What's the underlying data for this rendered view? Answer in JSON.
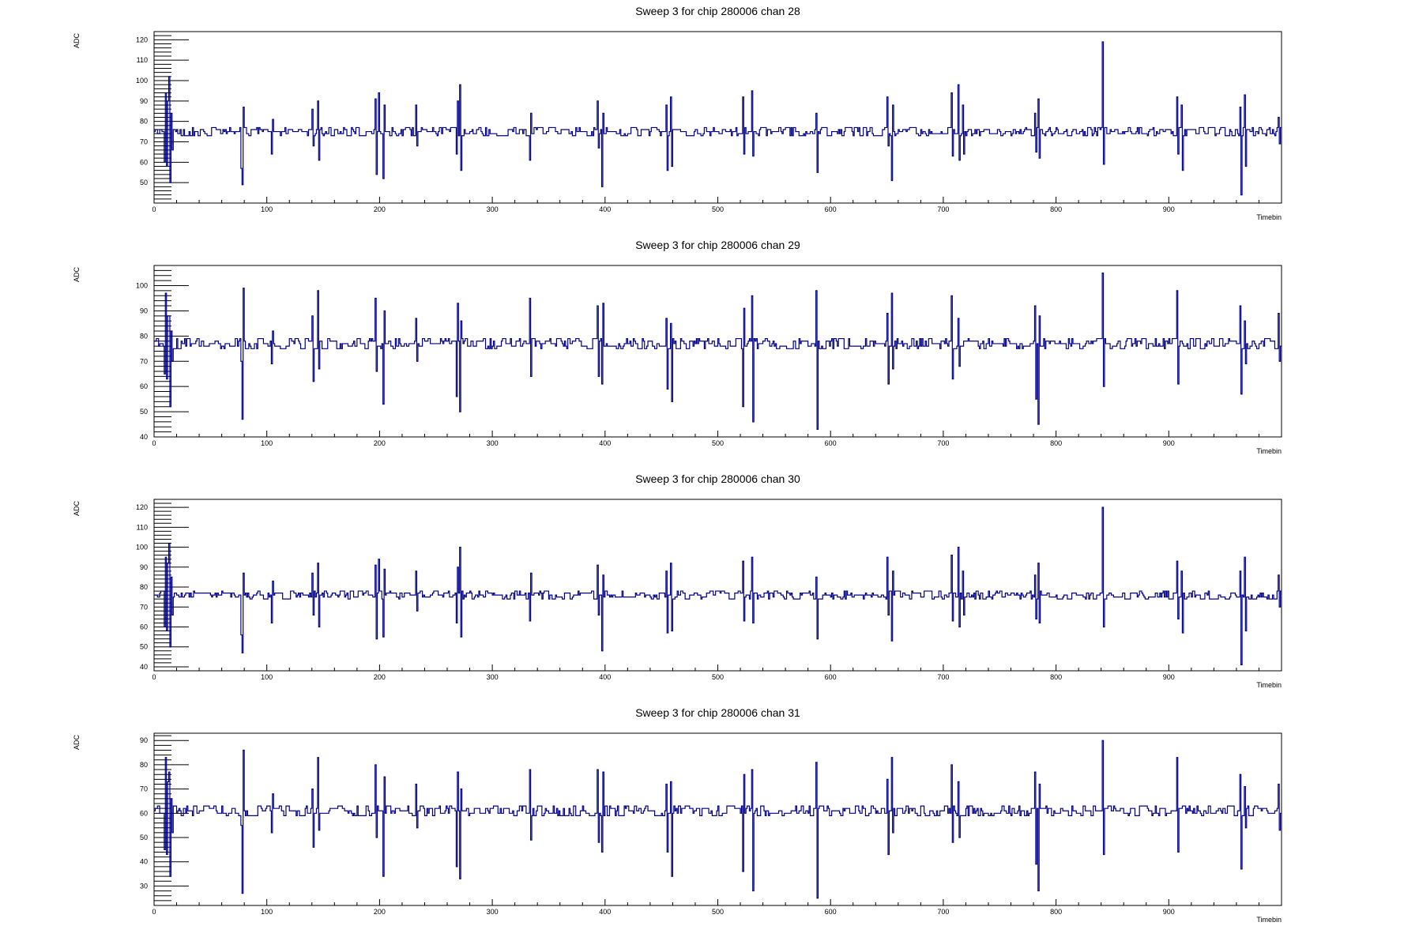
{
  "colors": {
    "trace": "#00008b",
    "frame": "#000000",
    "background": "#ffffff"
  },
  "chart_data": [
    {
      "type": "line",
      "style": "step",
      "title": "Sweep 3 for chip 280006 chan 28",
      "xlabel": "Timebin",
      "ylabel": "ADC",
      "xlim": [
        0,
        1000
      ],
      "ylim": [
        40,
        124
      ],
      "xticks": [
        0,
        100,
        200,
        300,
        400,
        500,
        600,
        700,
        800,
        900
      ],
      "yticks": [
        50,
        60,
        70,
        80,
        90,
        100,
        110,
        120
      ],
      "baseline": 75,
      "noise": 1.4,
      "spikes": [
        {
          "x": 9,
          "values": [
            60,
            94,
            58,
            90
          ]
        },
        {
          "x": 13,
          "values": [
            102,
            50,
            84,
            66
          ]
        },
        {
          "x": 77,
          "values": [
            57,
            49,
            87
          ]
        },
        {
          "x": 104,
          "values": [
            64,
            81
          ]
        },
        {
          "x": 140,
          "values": [
            86,
            68
          ]
        },
        {
          "x": 145,
          "values": [
            90,
            61
          ]
        },
        {
          "x": 196,
          "values": [
            91,
            54
          ]
        },
        {
          "x": 199,
          "values": [
            94
          ]
        },
        {
          "x": 203,
          "values": [
            52,
            88
          ]
        },
        {
          "x": 232,
          "values": [
            88,
            68
          ]
        },
        {
          "x": 268,
          "values": [
            64,
            90
          ]
        },
        {
          "x": 271,
          "values": [
            98,
            56
          ]
        },
        {
          "x": 333,
          "values": [
            61,
            84
          ]
        },
        {
          "x": 393,
          "values": [
            90,
            67
          ]
        },
        {
          "x": 397,
          "values": [
            48,
            84
          ]
        },
        {
          "x": 454,
          "values": [
            88,
            56
          ]
        },
        {
          "x": 458,
          "values": [
            92,
            58
          ]
        },
        {
          "x": 522,
          "values": [
            92,
            64
          ]
        },
        {
          "x": 530,
          "values": [
            95,
            63
          ]
        },
        {
          "x": 587,
          "values": [
            84,
            55
          ]
        },
        {
          "x": 650,
          "values": [
            92,
            68
          ]
        },
        {
          "x": 654,
          "values": [
            51,
            88
          ]
        },
        {
          "x": 707,
          "values": [
            94,
            63
          ]
        },
        {
          "x": 713,
          "values": [
            98,
            61
          ]
        },
        {
          "x": 717,
          "values": [
            88,
            64
          ]
        },
        {
          "x": 781,
          "values": [
            84,
            65
          ]
        },
        {
          "x": 784,
          "values": [
            91,
            62
          ]
        },
        {
          "x": 841,
          "values": [
            119,
            59
          ]
        },
        {
          "x": 907,
          "values": [
            92,
            64
          ]
        },
        {
          "x": 911,
          "values": [
            88,
            56
          ]
        },
        {
          "x": 963,
          "values": [
            87,
            44
          ]
        },
        {
          "x": 967,
          "values": [
            93,
            58
          ]
        },
        {
          "x": 997,
          "values": [
            82,
            69
          ]
        }
      ]
    },
    {
      "type": "line",
      "style": "step",
      "title": "Sweep 3 for chip 280006 chan 29",
      "xlabel": "Timebin",
      "ylabel": "ADC",
      "xlim": [
        0,
        1000
      ],
      "ylim": [
        40,
        108
      ],
      "xticks": [
        0,
        100,
        200,
        300,
        400,
        500,
        600,
        700,
        800,
        900
      ],
      "yticks": [
        40,
        50,
        60,
        70,
        80,
        90,
        100
      ],
      "baseline": 77,
      "noise": 1.4,
      "spikes": [
        {
          "x": 9,
          "values": [
            65,
            97,
            63,
            88
          ]
        },
        {
          "x": 13,
          "values": [
            88,
            52,
            82,
            70
          ]
        },
        {
          "x": 77,
          "values": [
            70,
            47,
            99
          ]
        },
        {
          "x": 104,
          "values": [
            69,
            82
          ]
        },
        {
          "x": 140,
          "values": [
            88,
            62
          ]
        },
        {
          "x": 145,
          "values": [
            98,
            67
          ]
        },
        {
          "x": 196,
          "values": [
            95,
            66
          ]
        },
        {
          "x": 203,
          "values": [
            53,
            90
          ]
        },
        {
          "x": 232,
          "values": [
            87,
            70
          ]
        },
        {
          "x": 268,
          "values": [
            56,
            93
          ]
        },
        {
          "x": 271,
          "values": [
            50,
            86
          ]
        },
        {
          "x": 333,
          "values": [
            95,
            64
          ]
        },
        {
          "x": 393,
          "values": [
            92,
            64
          ]
        },
        {
          "x": 397,
          "values": [
            61,
            93
          ]
        },
        {
          "x": 454,
          "values": [
            87,
            59
          ]
        },
        {
          "x": 458,
          "values": [
            85,
            54
          ]
        },
        {
          "x": 522,
          "values": [
            52,
            91
          ]
        },
        {
          "x": 530,
          "values": [
            96,
            46
          ]
        },
        {
          "x": 587,
          "values": [
            98,
            43
          ]
        },
        {
          "x": 650,
          "values": [
            89,
            61
          ]
        },
        {
          "x": 654,
          "values": [
            97,
            67
          ]
        },
        {
          "x": 707,
          "values": [
            96,
            63
          ]
        },
        {
          "x": 713,
          "values": [
            87,
            68
          ]
        },
        {
          "x": 781,
          "values": [
            92,
            55
          ]
        },
        {
          "x": 784,
          "values": [
            45,
            88
          ]
        },
        {
          "x": 841,
          "values": [
            105,
            60
          ]
        },
        {
          "x": 907,
          "values": [
            98,
            61
          ]
        },
        {
          "x": 963,
          "values": [
            92,
            57
          ]
        },
        {
          "x": 967,
          "values": [
            86,
            69
          ]
        },
        {
          "x": 997,
          "values": [
            89,
            70
          ]
        }
      ]
    },
    {
      "type": "line",
      "style": "step",
      "title": "Sweep 3 for chip 280006 chan 30",
      "xlabel": "Timebin",
      "ylabel": "ADC",
      "xlim": [
        0,
        1000
      ],
      "ylim": [
        38,
        124
      ],
      "xticks": [
        0,
        100,
        200,
        300,
        400,
        500,
        600,
        700,
        800,
        900
      ],
      "yticks": [
        40,
        50,
        60,
        70,
        80,
        90,
        100,
        110,
        120
      ],
      "baseline": 76,
      "noise": 1.4,
      "spikes": [
        {
          "x": 9,
          "values": [
            60,
            95,
            58,
            92
          ]
        },
        {
          "x": 13,
          "values": [
            102,
            50,
            85,
            66
          ]
        },
        {
          "x": 77,
          "values": [
            56,
            47,
            87
          ]
        },
        {
          "x": 104,
          "values": [
            62,
            83
          ]
        },
        {
          "x": 140,
          "values": [
            87,
            66
          ]
        },
        {
          "x": 145,
          "values": [
            92,
            60
          ]
        },
        {
          "x": 196,
          "values": [
            91,
            54
          ]
        },
        {
          "x": 199,
          "values": [
            94
          ]
        },
        {
          "x": 203,
          "values": [
            55,
            89
          ]
        },
        {
          "x": 232,
          "values": [
            88,
            68
          ]
        },
        {
          "x": 268,
          "values": [
            62,
            90
          ]
        },
        {
          "x": 271,
          "values": [
            100,
            55
          ]
        },
        {
          "x": 333,
          "values": [
            63,
            87
          ]
        },
        {
          "x": 393,
          "values": [
            91,
            66
          ]
        },
        {
          "x": 397,
          "values": [
            48,
            86
          ]
        },
        {
          "x": 454,
          "values": [
            88,
            57
          ]
        },
        {
          "x": 458,
          "values": [
            92,
            58
          ]
        },
        {
          "x": 522,
          "values": [
            93,
            63
          ]
        },
        {
          "x": 530,
          "values": [
            95,
            62
          ]
        },
        {
          "x": 587,
          "values": [
            85,
            54
          ]
        },
        {
          "x": 650,
          "values": [
            95,
            66
          ]
        },
        {
          "x": 654,
          "values": [
            53,
            88
          ]
        },
        {
          "x": 707,
          "values": [
            96,
            63
          ]
        },
        {
          "x": 713,
          "values": [
            100,
            60
          ]
        },
        {
          "x": 717,
          "values": [
            88,
            66
          ]
        },
        {
          "x": 781,
          "values": [
            86,
            64
          ]
        },
        {
          "x": 784,
          "values": [
            92,
            62
          ]
        },
        {
          "x": 841,
          "values": [
            120,
            60
          ]
        },
        {
          "x": 907,
          "values": [
            93,
            64
          ]
        },
        {
          "x": 911,
          "values": [
            88,
            57
          ]
        },
        {
          "x": 963,
          "values": [
            88,
            41
          ]
        },
        {
          "x": 967,
          "values": [
            95,
            58
          ]
        },
        {
          "x": 997,
          "values": [
            86,
            70
          ]
        }
      ]
    },
    {
      "type": "line",
      "style": "step",
      "title": "Sweep 3 for chip 280006 chan 31",
      "xlabel": "Timebin",
      "ylabel": "ADC",
      "xlim": [
        0,
        1000
      ],
      "ylim": [
        22,
        93
      ],
      "xticks": [
        0,
        100,
        200,
        300,
        400,
        500,
        600,
        700,
        800,
        900
      ],
      "yticks": [
        30,
        40,
        50,
        60,
        70,
        80,
        90
      ],
      "baseline": 61,
      "noise": 1.4,
      "spikes": [
        {
          "x": 9,
          "values": [
            45,
            83,
            43,
            73
          ]
        },
        {
          "x": 13,
          "values": [
            77,
            34,
            66,
            52
          ]
        },
        {
          "x": 77,
          "values": [
            55,
            27,
            86
          ]
        },
        {
          "x": 104,
          "values": [
            52,
            68
          ]
        },
        {
          "x": 140,
          "values": [
            70,
            46
          ]
        },
        {
          "x": 145,
          "values": [
            83,
            53
          ]
        },
        {
          "x": 196,
          "values": [
            80,
            50
          ]
        },
        {
          "x": 203,
          "values": [
            34,
            75
          ]
        },
        {
          "x": 232,
          "values": [
            72,
            54
          ]
        },
        {
          "x": 268,
          "values": [
            38,
            77
          ]
        },
        {
          "x": 271,
          "values": [
            33,
            70
          ]
        },
        {
          "x": 333,
          "values": [
            78,
            49
          ]
        },
        {
          "x": 393,
          "values": [
            78,
            48
          ]
        },
        {
          "x": 397,
          "values": [
            44,
            77
          ]
        },
        {
          "x": 454,
          "values": [
            72,
            44
          ]
        },
        {
          "x": 458,
          "values": [
            73,
            34
          ]
        },
        {
          "x": 522,
          "values": [
            36,
            76
          ]
        },
        {
          "x": 530,
          "values": [
            78,
            28
          ]
        },
        {
          "x": 587,
          "values": [
            81,
            25
          ]
        },
        {
          "x": 650,
          "values": [
            74,
            43
          ]
        },
        {
          "x": 654,
          "values": [
            83,
            52
          ]
        },
        {
          "x": 707,
          "values": [
            80,
            48
          ]
        },
        {
          "x": 713,
          "values": [
            73,
            50
          ]
        },
        {
          "x": 781,
          "values": [
            77,
            39
          ]
        },
        {
          "x": 784,
          "values": [
            28,
            72
          ]
        },
        {
          "x": 841,
          "values": [
            90,
            43
          ]
        },
        {
          "x": 907,
          "values": [
            83,
            44
          ]
        },
        {
          "x": 963,
          "values": [
            76,
            37
          ]
        },
        {
          "x": 967,
          "values": [
            71,
            54
          ]
        },
        {
          "x": 997,
          "values": [
            72,
            53
          ]
        }
      ]
    }
  ]
}
